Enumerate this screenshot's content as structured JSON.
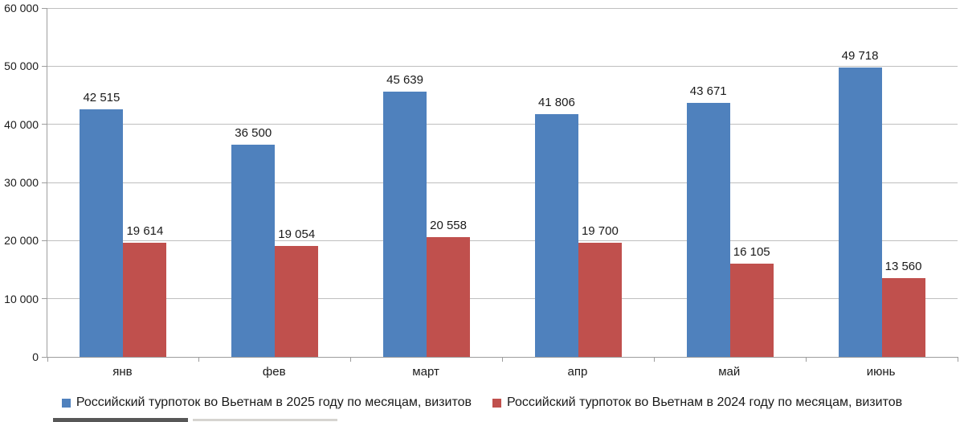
{
  "chart_data": {
    "type": "bar",
    "title": "",
    "xlabel": "",
    "ylabel": "",
    "categories": [
      "янв",
      "фев",
      "март",
      "апр",
      "май",
      "июнь"
    ],
    "series": [
      {
        "name": "Российский турпоток во Вьетнам в 2025 году по месяцам, визитов",
        "color": "#4F81BD",
        "values": [
          42515,
          36500,
          45639,
          41806,
          43671,
          49718
        ],
        "value_labels": [
          "42 515",
          "36 500",
          "45 639",
          "41 806",
          "43 671",
          "49 718"
        ]
      },
      {
        "name": "Российский турпоток во Вьетнам в 2024 году по месяцам, визитов",
        "color": "#C0504D",
        "values": [
          19614,
          19054,
          20558,
          19700,
          16105,
          13560
        ],
        "value_labels": [
          "19 614",
          "19 054",
          "20 558",
          "19 700",
          "16 105",
          "13 560"
        ]
      }
    ],
    "ylim": [
      0,
      60000
    ],
    "ytick_step": 10000,
    "ytick_labels": [
      "0",
      "10 000",
      "20 000",
      "30 000",
      "40 000",
      "50 000",
      "60 000"
    ],
    "grid": true,
    "legend_position": "bottom"
  },
  "style": {
    "gridline_color": "#bfbfbf",
    "axis_color": "#9d9d9d",
    "text_color": "#1a1a1a",
    "background": "#ffffff"
  }
}
